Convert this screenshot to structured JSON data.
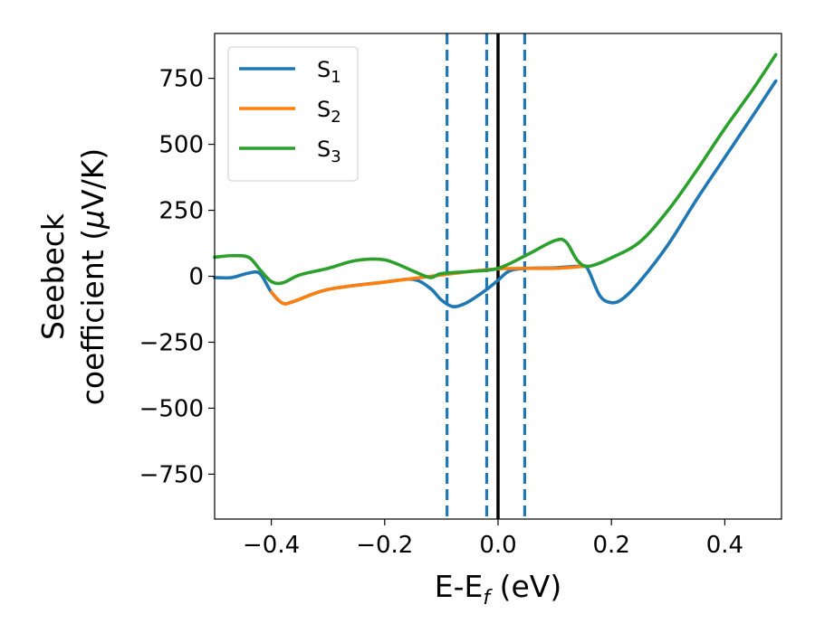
{
  "chart_data": {
    "type": "line",
    "xlabel": {
      "main": "E-E",
      "sub": "f",
      "unit": " (eV)"
    },
    "ylabel": {
      "line1": "Seebeck",
      "line2_main": "coefficient  (",
      "line2_mu": "μ",
      "line2_unit": "V/K)"
    },
    "xlim": [
      -0.5,
      0.5
    ],
    "ylim": [
      -920,
      920
    ],
    "xticks": [
      -0.4,
      -0.2,
      0.0,
      0.2,
      0.4
    ],
    "xtick_labels": [
      "−0.4",
      "−0.2",
      "0.0",
      "0.2",
      "0.4"
    ],
    "yticks": [
      750,
      500,
      250,
      0,
      -250,
      -500,
      -750
    ],
    "ytick_labels": [
      "750",
      "500",
      "250",
      "0",
      "−250",
      "−500",
      "−750"
    ],
    "grid": false,
    "legend": {
      "position": "top-left"
    },
    "vlines": [
      {
        "x": 0.0,
        "style": "solid",
        "color": "#000000"
      },
      {
        "x": -0.09,
        "style": "dashed",
        "color": "#1f77b4"
      },
      {
        "x": -0.02,
        "style": "dashed",
        "color": "#1f77b4"
      },
      {
        "x": 0.047,
        "style": "dashed",
        "color": "#1f77b4"
      }
    ],
    "series": [
      {
        "name": "S",
        "sub": "1",
        "color": "#1f77b4",
        "x": [
          -0.5,
          -0.47,
          -0.44,
          -0.42,
          -0.4,
          -0.38,
          -0.36,
          -0.3,
          -0.2,
          -0.15,
          -0.12,
          -0.1,
          -0.08,
          -0.06,
          -0.04,
          -0.02,
          0.0,
          0.02,
          0.05,
          0.1,
          0.15,
          0.16,
          0.18,
          0.2,
          0.22,
          0.25,
          0.3,
          0.35,
          0.4,
          0.45,
          0.49
        ],
        "y": [
          -5,
          -5,
          12,
          10,
          -60,
          -102,
          -95,
          -50,
          -22,
          -12,
          -45,
          -90,
          -115,
          -105,
          -80,
          -50,
          -15,
          20,
          30,
          32,
          38,
          20,
          -75,
          -100,
          -85,
          -20,
          120,
          290,
          450,
          610,
          740
        ]
      },
      {
        "name": "S",
        "sub": "2",
        "color": "#ff7f0e",
        "x": [
          -0.4,
          -0.38,
          -0.36,
          -0.3,
          -0.2,
          -0.1,
          0.0,
          0.1,
          0.15
        ],
        "y": [
          -60,
          -102,
          -95,
          -50,
          -22,
          5,
          28,
          30,
          38
        ]
      },
      {
        "name": "S",
        "sub": "3",
        "color": "#2ca02c",
        "x": [
          -0.5,
          -0.47,
          -0.44,
          -0.42,
          -0.4,
          -0.38,
          -0.35,
          -0.3,
          -0.25,
          -0.2,
          -0.15,
          -0.12,
          -0.1,
          -0.05,
          0.0,
          0.05,
          0.1,
          0.12,
          0.14,
          0.16,
          0.2,
          0.25,
          0.3,
          0.35,
          0.4,
          0.45,
          0.49
        ],
        "y": [
          72,
          78,
          72,
          25,
          -20,
          -25,
          5,
          30,
          60,
          62,
          20,
          -5,
          10,
          18,
          30,
          80,
          135,
          130,
          60,
          38,
          70,
          130,
          250,
          400,
          560,
          710,
          840
        ]
      }
    ]
  }
}
